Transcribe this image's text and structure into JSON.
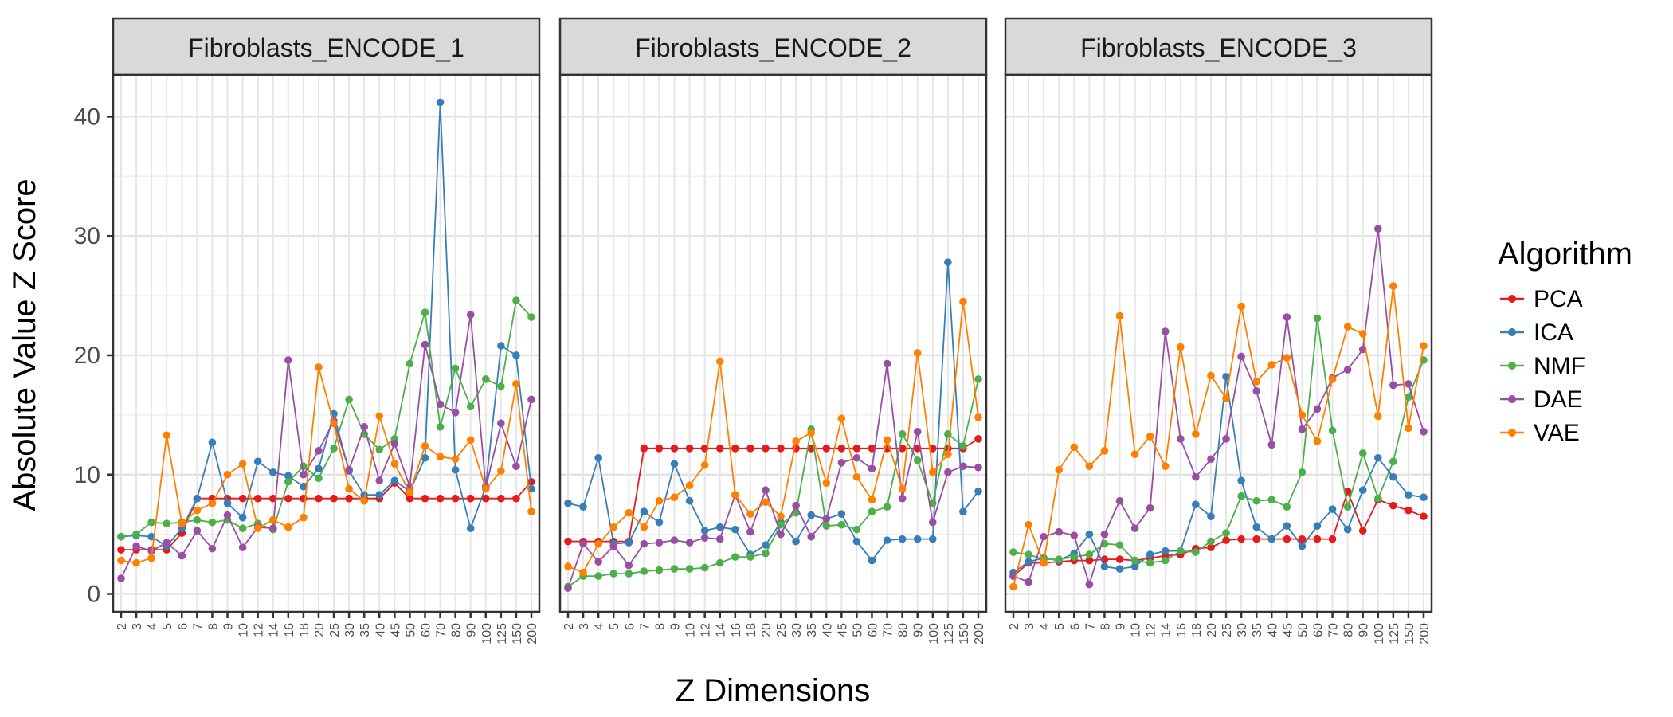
{
  "chart_data": {
    "type": "line",
    "ylabel": "Absolute Value Z Score",
    "xlabel": "Z Dimensions",
    "ylim": [
      -1.5,
      43.5
    ],
    "yticks": [
      0,
      10,
      20,
      30,
      40
    ],
    "grid": true,
    "legend_title": "Algorithm",
    "legend_position": "right",
    "x": [
      "2",
      "3",
      "4",
      "5",
      "6",
      "7",
      "8",
      "9",
      "10",
      "12",
      "14",
      "16",
      "18",
      "20",
      "25",
      "30",
      "35",
      "40",
      "45",
      "50",
      "60",
      "70",
      "80",
      "90",
      "100",
      "125",
      "150",
      "200"
    ],
    "panels": [
      {
        "title": "Fibroblasts_ENCODE_1",
        "series": [
          {
            "name": "PCA",
            "color": "#E41A1C",
            "values": [
              3.7,
              3.7,
              3.7,
              3.7,
              5.1,
              8.0,
              8.0,
              8.0,
              8.0,
              8.0,
              8.0,
              8.0,
              8.0,
              8.0,
              8.0,
              8.0,
              8.0,
              8.0,
              9.3,
              8.0,
              8.0,
              8.0,
              8.0,
              8.0,
              8.0,
              8.0,
              8.0,
              9.4
            ]
          },
          {
            "name": "ICA",
            "color": "#377EB8",
            "values": [
              4.8,
              4.9,
              4.8,
              4.0,
              5.5,
              8.0,
              12.7,
              7.6,
              6.4,
              11.1,
              10.2,
              9.9,
              9.0,
              10.5,
              15.1,
              10.3,
              8.3,
              8.3,
              9.5,
              8.6,
              11.4,
              41.2,
              10.4,
              5.5,
              9.0,
              20.8,
              20.0,
              8.8
            ]
          },
          {
            "name": "NMF",
            "color": "#4DAF4A",
            "values": [
              4.8,
              5.0,
              6.0,
              5.9,
              6.0,
              6.2,
              6.0,
              6.2,
              5.5,
              5.9,
              5.4,
              9.4,
              10.7,
              9.7,
              12.2,
              16.3,
              13.4,
              12.1,
              13.0,
              19.3,
              23.6,
              14.0,
              18.9,
              15.7,
              18.0,
              17.4,
              24.6,
              23.2
            ]
          },
          {
            "name": "DAE",
            "color": "#984EA3",
            "values": [
              1.3,
              4.0,
              3.6,
              4.3,
              3.2,
              5.3,
              3.8,
              6.6,
              3.9,
              5.6,
              5.5,
              19.6,
              10.0,
              12.0,
              14.5,
              10.4,
              14.0,
              9.5,
              12.6,
              9.0,
              20.9,
              15.9,
              15.2,
              23.4,
              8.9,
              14.3,
              10.7,
              16.3
            ]
          },
          {
            "name": "VAE",
            "color": "#FF7F00",
            "values": [
              2.8,
              2.6,
              3.0,
              13.3,
              5.9,
              7.0,
              7.6,
              10.0,
              10.9,
              5.5,
              6.2,
              5.6,
              6.4,
              19.0,
              14.3,
              8.8,
              7.8,
              14.9,
              10.9,
              8.5,
              12.4,
              11.5,
              11.3,
              12.9,
              8.8,
              10.3,
              17.6,
              6.9
            ]
          }
        ]
      },
      {
        "title": "Fibroblasts_ENCODE_2",
        "series": [
          {
            "name": "PCA",
            "color": "#E41A1C",
            "values": [
              4.4,
              4.4,
              4.4,
              4.4,
              4.4,
              12.2,
              12.2,
              12.2,
              12.2,
              12.2,
              12.2,
              12.2,
              12.2,
              12.2,
              12.2,
              12.2,
              12.2,
              12.2,
              12.2,
              12.2,
              12.2,
              12.2,
              12.2,
              12.2,
              12.2,
              12.2,
              12.2,
              13.0
            ]
          },
          {
            "name": "ICA",
            "color": "#377EB8",
            "values": [
              7.6,
              7.3,
              11.4,
              4.2,
              4.3,
              6.9,
              6.0,
              10.9,
              7.8,
              5.3,
              5.6,
              5.4,
              3.3,
              4.1,
              6.0,
              4.4,
              6.6,
              6.3,
              6.7,
              4.4,
              2.8,
              4.5,
              4.6,
              4.6,
              4.6,
              27.8,
              6.9,
              8.6
            ]
          },
          {
            "name": "NMF",
            "color": "#4DAF4A",
            "values": [
              0.6,
              1.5,
              1.5,
              1.7,
              1.7,
              1.9,
              2.0,
              2.1,
              2.1,
              2.2,
              2.6,
              3.1,
              3.1,
              3.4,
              5.8,
              6.8,
              13.8,
              5.7,
              5.8,
              5.4,
              6.9,
              7.3,
              13.4,
              11.2,
              7.6,
              13.4,
              12.4,
              18.0
            ]
          },
          {
            "name": "DAE",
            "color": "#984EA3",
            "values": [
              0.5,
              4.2,
              2.7,
              4.0,
              2.4,
              4.2,
              4.3,
              4.5,
              4.3,
              4.7,
              4.6,
              8.3,
              5.2,
              8.7,
              5.0,
              7.4,
              4.8,
              6.3,
              11.0,
              11.4,
              10.5,
              19.3,
              8.0,
              13.6,
              6.0,
              10.2,
              10.7,
              10.6
            ]
          },
          {
            "name": "VAE",
            "color": "#FF7F00",
            "values": [
              2.3,
              1.8,
              4.2,
              5.6,
              6.8,
              5.6,
              7.8,
              8.1,
              9.1,
              10.8,
              19.5,
              8.3,
              6.7,
              7.7,
              6.5,
              12.8,
              13.5,
              9.3,
              14.7,
              9.8,
              7.9,
              12.9,
              8.8,
              20.2,
              10.2,
              11.7,
              24.5,
              14.8
            ]
          }
        ]
      },
      {
        "title": "Fibroblasts_ENCODE_3",
        "series": [
          {
            "name": "PCA",
            "color": "#E41A1C",
            "values": [
              1.5,
              2.6,
              2.6,
              2.7,
              2.8,
              2.8,
              2.9,
              2.9,
              2.8,
              3.0,
              3.2,
              3.3,
              3.8,
              3.9,
              4.5,
              4.6,
              4.6,
              4.6,
              4.6,
              4.6,
              4.6,
              4.6,
              8.6,
              5.3,
              7.9,
              7.4,
              7.0,
              6.5
            ]
          },
          {
            "name": "ICA",
            "color": "#377EB8",
            "values": [
              1.8,
              2.7,
              3.0,
              2.8,
              3.4,
              5.0,
              2.3,
              2.1,
              2.3,
              3.3,
              3.6,
              3.6,
              7.5,
              6.5,
              18.2,
              9.5,
              5.6,
              4.6,
              5.7,
              4.0,
              5.7,
              7.1,
              5.4,
              8.7,
              11.4,
              9.8,
              8.3,
              8.1
            ]
          },
          {
            "name": "NMF",
            "color": "#4DAF4A",
            "values": [
              3.5,
              3.3,
              2.9,
              2.9,
              3.1,
              3.3,
              4.2,
              4.1,
              2.8,
              2.6,
              2.8,
              3.6,
              3.5,
              4.4,
              5.1,
              8.2,
              7.8,
              7.9,
              7.3,
              10.2,
              23.1,
              13.7,
              7.3,
              11.8,
              8.0,
              11.1,
              16.5,
              19.6
            ]
          },
          {
            "name": "DAE",
            "color": "#984EA3",
            "values": [
              1.5,
              1.0,
              4.8,
              5.2,
              4.9,
              0.8,
              5.0,
              7.8,
              5.5,
              7.2,
              22.0,
              13.0,
              9.8,
              11.3,
              13.0,
              19.9,
              17.0,
              12.5,
              23.2,
              13.8,
              15.5,
              18.1,
              18.8,
              20.5,
              30.6,
              17.5,
              17.6,
              13.6
            ]
          },
          {
            "name": "VAE",
            "color": "#FF7F00",
            "values": [
              0.6,
              5.8,
              2.6,
              10.4,
              12.3,
              10.7,
              12.0,
              23.3,
              11.7,
              13.2,
              10.7,
              20.7,
              13.4,
              18.3,
              16.4,
              24.1,
              17.8,
              19.2,
              19.8,
              15.0,
              12.8,
              18.0,
              22.4,
              21.8,
              14.9,
              25.8,
              13.9,
              20.8
            ]
          }
        ]
      }
    ]
  }
}
